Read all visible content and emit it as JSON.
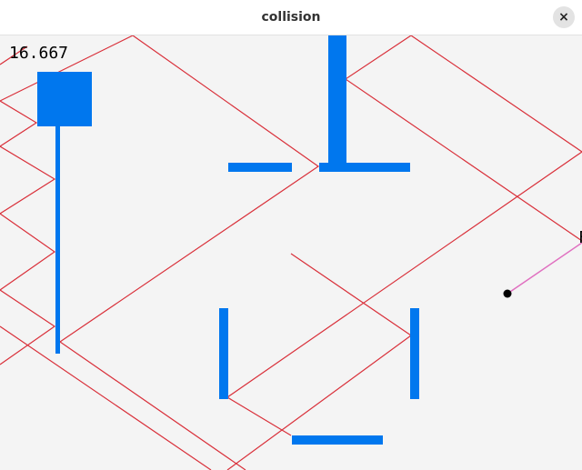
{
  "window": {
    "title": "collision",
    "close_glyph": "×",
    "close_icon": "close-icon"
  },
  "game": {
    "fps_readout": "16.667",
    "edge_marker_text": "F",
    "colors": {
      "background": "#f4f4f4",
      "wall": "#0077ee",
      "trajectory": "#d9303a",
      "aim_line": "#e070c0",
      "ball": "#000000"
    }
  }
}
